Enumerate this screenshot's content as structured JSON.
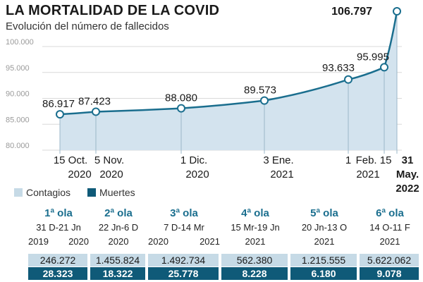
{
  "header": {
    "title": "LA MORTALIDAD DE LA COVID",
    "subtitle": "Evolución del número de fallecidos"
  },
  "colors": {
    "line": "#1a6e8e",
    "area": "#d3e3ee",
    "contagios": "#c6dae6",
    "muertes": "#0f5a78"
  },
  "chart_data": {
    "type": "area",
    "title": "LA MORTALIDAD DE LA COVID",
    "subtitle": "Evolución del número de fallecidos",
    "ylim": [
      80000,
      106797
    ],
    "yticks": [
      {
        "value": 80000,
        "label": "80.000"
      },
      {
        "value": 85000,
        "label": "85.000"
      },
      {
        "value": 90000,
        "label": "90.000"
      },
      {
        "value": 95000,
        "label": "95.000"
      },
      {
        "value": 100000,
        "label": "100.000"
      }
    ],
    "points": [
      {
        "date": "2020-10-15",
        "value": 86917,
        "label": "86.917"
      },
      {
        "date": "2020-11-05",
        "value": 87423,
        "label": "87.423"
      },
      {
        "date": "2020-12-01",
        "value": 88080,
        "label": "88.080"
      },
      {
        "date": "2021-01-03",
        "value": 89573,
        "label": "89.573"
      },
      {
        "date": "2021-02-01",
        "value": 93633,
        "label": "93.633"
      },
      {
        "date": "2021-02-15",
        "value": 95995,
        "label": "95.995"
      },
      {
        "date": "2022-05-31",
        "value": 106797,
        "label": "106.797"
      }
    ],
    "xticks": [
      {
        "date": "2020-10-15",
        "lines": [
          "15 Oct.",
          "2020"
        ]
      },
      {
        "date": "2020-11-05",
        "lines": [
          "5 Nov.",
          "2020"
        ]
      },
      {
        "date": "2020-12-01",
        "lines": [
          "1 Dic.",
          "2020"
        ]
      },
      {
        "date": "2021-01-03",
        "lines": [
          "3 Ene.",
          "2021"
        ]
      },
      {
        "date": "2021-02-01",
        "lines": [
          "1",
          ""
        ]
      },
      {
        "date": "2021-02-15",
        "lines": [
          "Feb. 15",
          "2021"
        ]
      },
      {
        "date": "2022-05-31",
        "lines": [
          "31",
          "May.",
          "2022"
        ]
      }
    ]
  },
  "legend": {
    "contagios": "Contagios",
    "muertes": "Muertes"
  },
  "waves": [
    {
      "name": "1ª ola",
      "dates": "31 D-21 Jn",
      "years": [
        "2019",
        "2020"
      ],
      "contagios": "246.272",
      "muertes": "28.323"
    },
    {
      "name": "2ª ola",
      "dates": "22 Jn-6 D",
      "years": [
        "2020"
      ],
      "contagios": "1.455.824",
      "muertes": "18.322"
    },
    {
      "name": "3ª ola",
      "dates": "7 D-14 Mr",
      "years": [
        "2020",
        "2021"
      ],
      "contagios": "1.492.734",
      "muertes": "25.778"
    },
    {
      "name": "4ª ola",
      "dates": "15 Mr-19 Jn",
      "years": [
        "2021"
      ],
      "contagios": "562.380",
      "muertes": "8.228"
    },
    {
      "name": "5ª ola",
      "dates": "20 Jn-13 O",
      "years": [
        "2021"
      ],
      "contagios": "1.215.555",
      "muertes": "6.180"
    },
    {
      "name": "6ª ola",
      "dates": "14 O-11 F",
      "years": [
        "2021"
      ],
      "contagios": "5.622.062",
      "muertes": "9.078"
    }
  ]
}
